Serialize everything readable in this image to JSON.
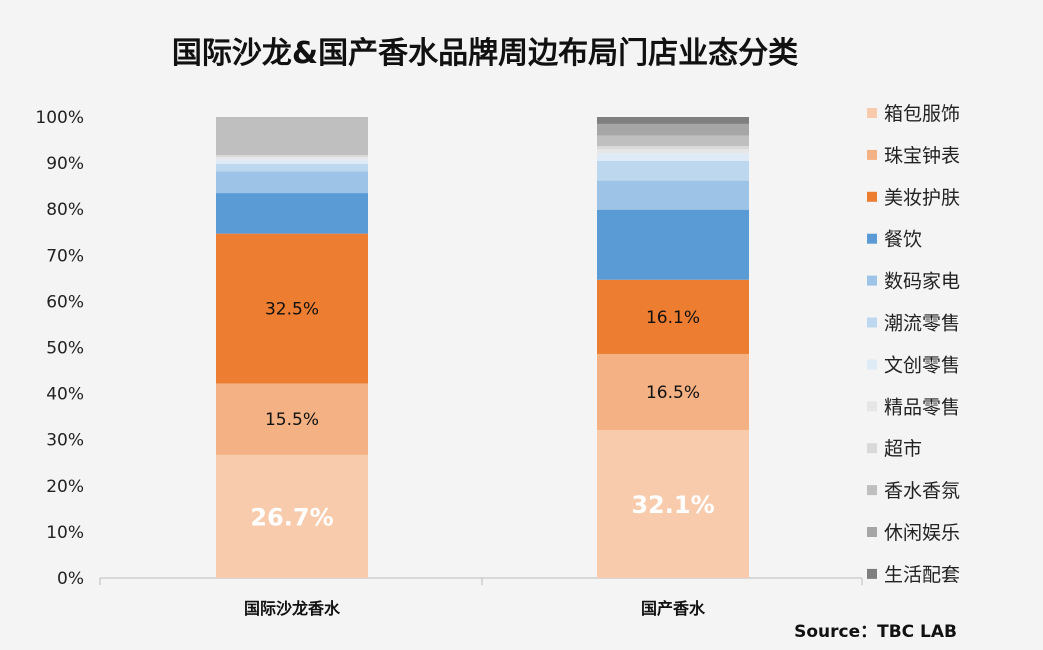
{
  "chart_data": {
    "type": "bar",
    "stacked": true,
    "title": "国际沙龙&国产香水品牌周边布局门店业态分类",
    "categories": [
      "国际沙龙香水",
      "国产香水"
    ],
    "ylim": [
      0,
      100
    ],
    "yticks": [
      "0%",
      "10%",
      "20%",
      "30%",
      "40%",
      "50%",
      "60%",
      "70%",
      "80%",
      "90%",
      "100%"
    ],
    "legend_position": "right",
    "series": [
      {
        "name": "箱包服饰",
        "color": "#f8cbad",
        "values": [
          26.7,
          32.1
        ],
        "labels": [
          "26.7%",
          "32.1%"
        ],
        "label_style": "big"
      },
      {
        "name": "珠宝钟表",
        "color": "#f4b183",
        "values": [
          15.5,
          16.5
        ],
        "labels": [
          "15.5%",
          "16.5%"
        ],
        "label_style": "dark"
      },
      {
        "name": "美妆护肤",
        "color": "#ed7d31",
        "values": [
          32.5,
          16.1
        ],
        "labels": [
          "32.5%",
          "16.1%"
        ],
        "label_style": "dark"
      },
      {
        "name": "餐饮",
        "color": "#5b9bd5",
        "values": [
          8.8,
          15.2
        ]
      },
      {
        "name": "数码家电",
        "color": "#9dc3e6",
        "values": [
          4.7,
          6.3
        ]
      },
      {
        "name": "潮流零售",
        "color": "#bdd7ee",
        "values": [
          1.6,
          4.3
        ]
      },
      {
        "name": "文创零售",
        "color": "#deebf7",
        "values": [
          1.0,
          1.6
        ]
      },
      {
        "name": "精品零售",
        "color": "#e7e6e6",
        "values": [
          0.5,
          0.9
        ]
      },
      {
        "name": "超市",
        "color": "#d9d9d9",
        "values": [
          0.4,
          0.7
        ]
      },
      {
        "name": "香水香氛",
        "color": "#bfbfbf",
        "values": [
          8.3,
          2.3
        ]
      },
      {
        "name": "休闲娱乐",
        "color": "#a6a6a6",
        "values": [
          0,
          2.5
        ]
      },
      {
        "name": "生活配套",
        "color": "#7f7f7f",
        "values": [
          0,
          1.5
        ]
      }
    ],
    "source": "Source：TBC LAB"
  }
}
